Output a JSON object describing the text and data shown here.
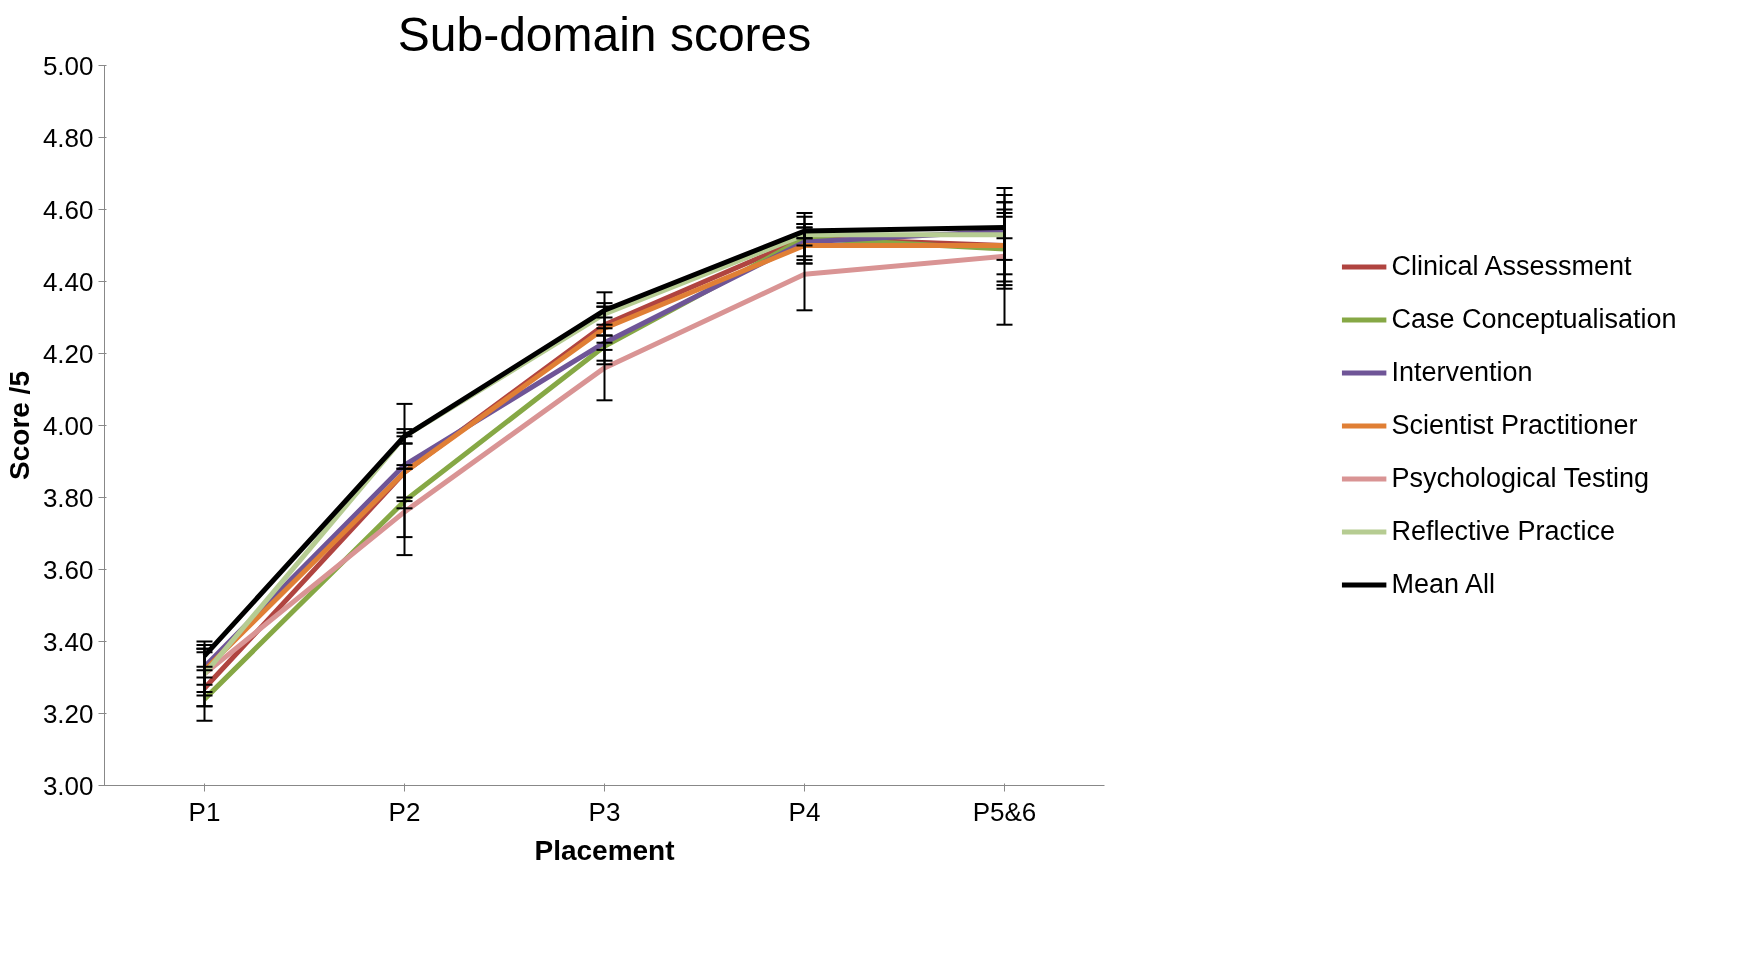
{
  "chart_data": {
    "type": "line",
    "title": "Sub-domain scores",
    "xlabel": "Placement",
    "ylabel": "Score /5",
    "categories": [
      "P1",
      "P2",
      "P3",
      "P4",
      "P5&6"
    ],
    "ylim": [
      3.0,
      5.0
    ],
    "yticks": [
      {
        "value": 3.0,
        "label": "3.00"
      },
      {
        "value": 3.2,
        "label": "3.20"
      },
      {
        "value": 3.4,
        "label": "3.40"
      },
      {
        "value": 3.6,
        "label": "3.60"
      },
      {
        "value": 3.8,
        "label": "3.80"
      },
      {
        "value": 4.0,
        "label": "4.00"
      },
      {
        "value": 4.2,
        "label": "4.20"
      },
      {
        "value": 4.4,
        "label": "4.40"
      },
      {
        "value": 4.6,
        "label": "4.60"
      },
      {
        "value": 4.8,
        "label": "4.80"
      },
      {
        "value": 5.0,
        "label": "5.00"
      }
    ],
    "grid": false,
    "legend": "right",
    "marker": "none",
    "line_style": "solid",
    "series": [
      {
        "name": "Clinical Assessment",
        "color": "#b04440",
        "values": [
          3.27,
          3.87,
          4.28,
          4.52,
          4.5
        ],
        "errors": [
          0.05,
          0.08,
          0.05,
          0.06,
          0.1
        ]
      },
      {
        "name": "Case Conceptualisation",
        "color": "#86a845",
        "values": [
          3.24,
          3.79,
          4.22,
          4.52,
          4.49
        ],
        "errors": [
          0.06,
          0.1,
          0.05,
          0.07,
          0.1
        ]
      },
      {
        "name": "Intervention",
        "color": "#6f5597",
        "values": [
          3.33,
          3.89,
          4.23,
          4.51,
          4.54
        ],
        "errors": [
          0.05,
          0.09,
          0.05,
          0.04,
          0.08
        ]
      },
      {
        "name": "Scientist Practitioner",
        "color": "#e07f35",
        "values": [
          3.32,
          3.87,
          4.27,
          4.5,
          4.5
        ],
        "errors": [
          0.06,
          0.1,
          0.06,
          0.05,
          0.12
        ]
      },
      {
        "name": "Psychological Testing",
        "color": "#d99494",
        "values": [
          3.31,
          3.76,
          4.16,
          4.42,
          4.47
        ],
        "errors": [
          0.09,
          0.12,
          0.09,
          0.1,
          0.19
        ]
      },
      {
        "name": "Reflective Practice",
        "color": "#b6cc92",
        "values": [
          3.31,
          3.97,
          4.31,
          4.53,
          4.53
        ],
        "errors": [
          0.06,
          0.09,
          0.06,
          0.03,
          0.11
        ]
      },
      {
        "name": "Mean All",
        "color": "#000000",
        "values": [
          3.36,
          3.97,
          4.32,
          4.54,
          4.55
        ],
        "errors": [
          0.03,
          0.02,
          0.02,
          0.02,
          0.03
        ]
      }
    ]
  }
}
